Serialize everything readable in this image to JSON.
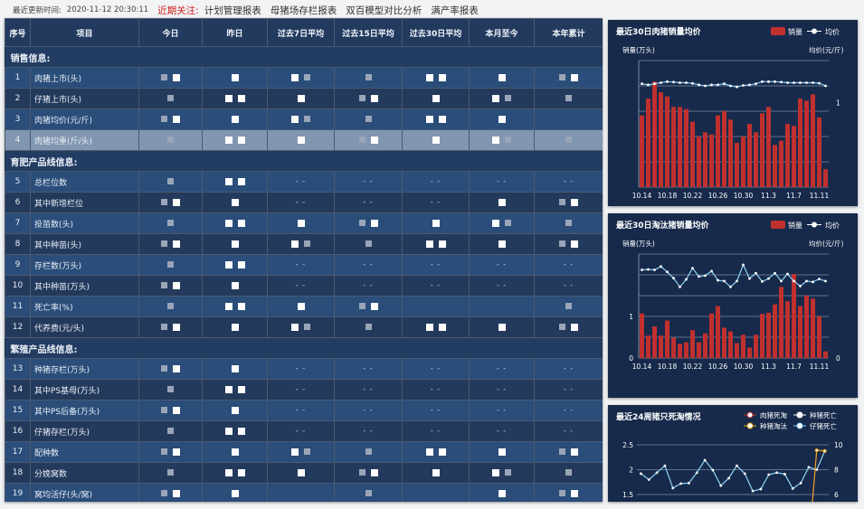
{
  "topbar": {
    "update_label": "最近更新时间:",
    "update_time": "2020-11-12 20:30:11",
    "focus_label": "近期关注:",
    "links": [
      "计划管理报表",
      "母猪场存栏报表",
      "双百模型对比分析",
      "满产率报表"
    ]
  },
  "table": {
    "headers": [
      "序号",
      "项目",
      "今日",
      "昨日",
      "过去7日平均",
      "过去15日平均",
      "过去30日平均",
      "本月至今",
      "本年累计"
    ],
    "rows": [
      {
        "section": "销售信息:"
      },
      {
        "no": "1",
        "item": "肉猪上市(头)",
        "cells": [
          null,
          null,
          null,
          null,
          null,
          null,
          null
        ]
      },
      {
        "no": "2",
        "item": "仔猪上市(头)",
        "cells": [
          null,
          null,
          null,
          null,
          null,
          null,
          null
        ]
      },
      {
        "no": "3",
        "item": "肉猪均价(元/斤)",
        "cells": [
          null,
          null,
          null,
          null,
          null,
          null,
          ""
        ]
      },
      {
        "no": "4",
        "item": "肉猪均重(斤/头)",
        "cells": [
          null,
          null,
          null,
          null,
          null,
          null,
          null
        ],
        "highlight": true
      },
      {
        "section": "育肥产品线信息:"
      },
      {
        "no": "5",
        "item": "总栏位数",
        "cells": [
          null,
          null,
          "- -",
          "- -",
          "- -",
          "- -",
          "- -"
        ]
      },
      {
        "no": "6",
        "item": "其中新增栏位",
        "cells": [
          null,
          null,
          "- -",
          "- -",
          "- -",
          null,
          null
        ]
      },
      {
        "no": "7",
        "item": "投苗数(头)",
        "cells": [
          null,
          null,
          null,
          null,
          null,
          null,
          null
        ]
      },
      {
        "no": "8",
        "item": "其中种苗(头)",
        "cells": [
          null,
          null,
          null,
          null,
          null,
          null,
          null
        ]
      },
      {
        "no": "9",
        "item": "存栏数(万头)",
        "cells": [
          null,
          null,
          "- -",
          "- -",
          "- -",
          "- -",
          "- -"
        ]
      },
      {
        "no": "10",
        "item": "其中种苗(万头)",
        "cells": [
          null,
          null,
          "- -",
          "- -",
          "- -",
          "- -",
          "- -"
        ]
      },
      {
        "no": "11",
        "item": "死亡率(%)",
        "cells": [
          null,
          null,
          null,
          null,
          "",
          "",
          null
        ]
      },
      {
        "no": "12",
        "item": "代养费(元/头)",
        "cells": [
          null,
          null,
          null,
          null,
          null,
          null,
          null
        ]
      },
      {
        "section": "繁殖产品线信息:"
      },
      {
        "no": "13",
        "item": "种猪存栏(万头)",
        "cells": [
          null,
          null,
          "- -",
          "- -",
          "- -",
          "- -",
          "- -"
        ]
      },
      {
        "no": "14",
        "item": "其中PS基母(万头)",
        "cells": [
          null,
          null,
          "- -",
          "- -",
          "- -",
          "- -",
          "- -"
        ]
      },
      {
        "no": "15",
        "item": "其中PS后备(万头)",
        "cells": [
          null,
          null,
          "- -",
          "- -",
          "- -",
          "- -",
          "- -"
        ]
      },
      {
        "no": "16",
        "item": "仔猪存栏(万头)",
        "cells": [
          null,
          null,
          "- -",
          "- -",
          "- -",
          "- -",
          "- -"
        ]
      },
      {
        "no": "17",
        "item": "配种数",
        "cells": [
          null,
          null,
          null,
          null,
          null,
          null,
          null
        ]
      },
      {
        "no": "18",
        "item": "分娩窝数",
        "cells": [
          null,
          null,
          null,
          null,
          null,
          null,
          null
        ]
      },
      {
        "no": "19",
        "item": "窝均活仔(头/窝)",
        "cells": [
          null,
          null,
          "",
          null,
          "",
          null,
          null
        ]
      }
    ]
  },
  "colors": {
    "bar": "#c0302e",
    "line": "#8fd3f4",
    "orange": "#f0a020",
    "panel": "#172a4b",
    "highlight_row": "#8196b0"
  },
  "chart_data": [
    {
      "type": "bar+line",
      "title": "最近30日肉猪销量均价",
      "legend": [
        "销量",
        "均价"
      ],
      "ylabel_left": "销量(万头)",
      "ylabel_right": "均价(元/斤)",
      "right_ticks": [
        {
          "label": "1",
          "at": 4
        }
      ],
      "ylim": [
        0,
        6
      ],
      "x": [
        "10.14",
        "10.15",
        "10.16",
        "10.17",
        "10.18",
        "10.19",
        "10.20",
        "10.21",
        "10.22",
        "10.23",
        "10.24",
        "10.25",
        "10.26",
        "10.27",
        "10.28",
        "10.29",
        "10.30",
        "10.31",
        "11.1",
        "11.2",
        "11.3",
        "11.4",
        "11.5",
        "11.6",
        "11.7",
        "11.8",
        "11.9",
        "11.10",
        "11.11",
        "11.12"
      ],
      "xticks": [
        "10.14",
        "10.18",
        "10.22",
        "10.26",
        "10.30",
        "11.3",
        "11.7",
        "11.11"
      ],
      "series": [
        {
          "name": "销量",
          "type": "bar",
          "values": [
            3.4,
            4.2,
            5.0,
            4.5,
            4.3,
            3.8,
            3.8,
            3.7,
            3.1,
            2.4,
            2.6,
            2.5,
            3.4,
            3.6,
            3.2,
            2.1,
            2.4,
            3.0,
            2.6,
            3.5,
            3.8,
            2.0,
            2.2,
            3.0,
            2.9,
            4.2,
            4.1,
            4.4,
            3.3,
            0.85
          ]
        },
        {
          "name": "均价",
          "type": "line",
          "values": [
            4.9,
            4.85,
            4.9,
            4.95,
            5.0,
            4.98,
            4.95,
            4.95,
            4.92,
            4.85,
            4.8,
            4.85,
            4.85,
            4.9,
            4.8,
            4.75,
            4.82,
            4.85,
            4.9,
            5.0,
            5.0,
            5.0,
            4.98,
            4.95,
            4.95,
            4.95,
            4.95,
            4.95,
            4.93,
            4.8
          ]
        }
      ]
    },
    {
      "type": "bar+line",
      "title": "最近30日淘汰猪销量均价",
      "legend": [
        "销量",
        "均价"
      ],
      "ylabel_left": "销量(万头)",
      "ylabel_right": "均价(元/斤)",
      "left_ticks": [
        {
          "label": "0",
          "at": 0
        },
        {
          "label": "1",
          "at": 1
        }
      ],
      "right_ticks": [
        {
          "label": "0",
          "at": 0
        }
      ],
      "ylim": [
        0,
        2.5
      ],
      "x": [
        "10.14",
        "10.15",
        "10.16",
        "10.17",
        "10.18",
        "10.19",
        "10.20",
        "10.21",
        "10.22",
        "10.23",
        "10.24",
        "10.25",
        "10.26",
        "10.27",
        "10.28",
        "10.29",
        "10.30",
        "10.31",
        "11.1",
        "11.2",
        "11.3",
        "11.4",
        "11.5",
        "11.6",
        "11.7",
        "11.8",
        "11.9",
        "11.10",
        "11.11",
        "11.12"
      ],
      "xticks": [
        "10.14",
        "10.18",
        "10.22",
        "10.26",
        "10.30",
        "11.3",
        "11.7",
        "11.11"
      ],
      "series": [
        {
          "name": "销量",
          "type": "bar",
          "values": [
            1.07,
            0.54,
            0.76,
            0.54,
            0.9,
            0.49,
            0.34,
            0.38,
            0.67,
            0.38,
            0.59,
            1.07,
            1.25,
            0.73,
            0.64,
            0.36,
            0.56,
            0.25,
            0.56,
            1.06,
            1.09,
            1.29,
            1.71,
            1.37,
            2.02,
            1.25,
            1.5,
            1.43,
            1.0,
            0.16
          ]
        },
        {
          "name": "均价",
          "type": "line",
          "values": [
            2.12,
            2.13,
            2.12,
            2.2,
            2.07,
            1.92,
            1.71,
            1.89,
            2.16,
            1.96,
            1.98,
            2.09,
            1.87,
            1.85,
            1.71,
            1.85,
            2.24,
            1.91,
            2.04,
            1.84,
            1.91,
            2.04,
            1.85,
            2.02,
            1.85,
            1.73,
            1.85,
            1.83,
            1.9,
            1.85
          ]
        }
      ]
    },
    {
      "type": "line",
      "title": "最近24周猪只死淘情况",
      "legend": [
        "肉猪死淘",
        "种猪死亡",
        "种猪淘汰",
        "仔猪死亡"
      ],
      "left_ticks": [
        "1.5",
        "2",
        "2.5"
      ],
      "right_ticks": [
        "6",
        "8",
        "10"
      ],
      "ylim_left": [
        1.5,
        2.5
      ],
      "ylim_right": [
        6,
        10
      ],
      "series": [
        {
          "name": "仔猪死亡",
          "axis": "left",
          "values": [
            1.92,
            1.8,
            1.94,
            2.08,
            1.63,
            1.72,
            1.73,
            1.94,
            2.19,
            1.99,
            1.68,
            1.83,
            2.08,
            1.92,
            1.57,
            1.61,
            1.9,
            1.94,
            1.91,
            1.62,
            1.73,
            2.05,
            2.0,
            2.37
          ]
        },
        {
          "name": "种猪淘汰",
          "axis": "right",
          "values": [
            null,
            null,
            null,
            null,
            null,
            null,
            null,
            null,
            null,
            null,
            null,
            null,
            null,
            null,
            null,
            null,
            null,
            null,
            null,
            null,
            null,
            null,
            9.56,
            9.5
          ]
        }
      ]
    }
  ]
}
